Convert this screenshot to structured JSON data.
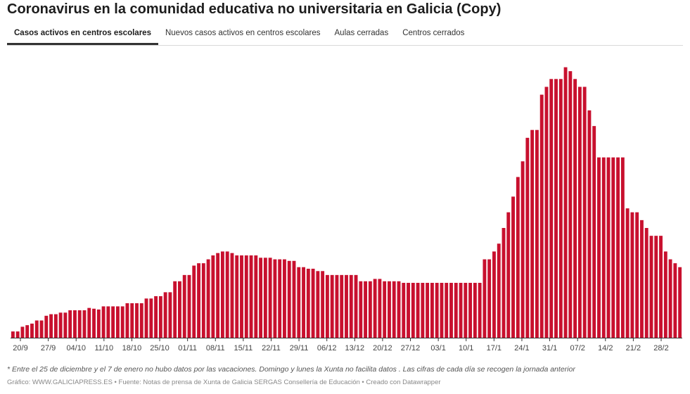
{
  "title": "Coronavirus en la comunidad educativa no universitaria en Galicia (Copy)",
  "tabs": [
    {
      "label": "Casos activos en centros escolares",
      "active": true
    },
    {
      "label": "Nuevos casos activos en centros escolares",
      "active": false
    },
    {
      "label": "Aulas cerradas",
      "active": false
    },
    {
      "label": "Centros cerrados",
      "active": false
    }
  ],
  "footnote": "* Entre el 25 de diciembre y el 7 de enero no hubo datos por las vacaciones. Domingo y lunes la Xunta no facilita datos . Las cifras de cada día se recogen la jornada anterior",
  "credits": "Gráfico: WWW.GALICIAPRESS.ES • Fuente: Notas de prensa de Xunta de Galicia SERGAS Consellería de Educación • Creado con Datawrapper",
  "colors": {
    "bar": "#c8102e"
  },
  "chart_data": {
    "type": "bar",
    "title": "",
    "xlabel": "",
    "ylabel": "",
    "grid": false,
    "x_tick_labels": [
      "20/9",
      "27/9",
      "04/10",
      "11/10",
      "18/10",
      "25/10",
      "01/11",
      "08/11",
      "15/11",
      "22/11",
      "29/11",
      "06/12",
      "13/12",
      "20/12",
      "27/12",
      "03/1",
      "10/1",
      "17/1",
      "24/1",
      "31/1",
      "07/2",
      "14/2",
      "21/2",
      "28/2"
    ],
    "values": [
      8,
      8,
      14,
      16,
      18,
      22,
      22,
      28,
      30,
      30,
      32,
      32,
      35,
      35,
      35,
      35,
      38,
      37,
      36,
      40,
      40,
      40,
      40,
      40,
      44,
      44,
      44,
      44,
      50,
      50,
      53,
      53,
      58,
      58,
      72,
      72,
      80,
      80,
      92,
      95,
      95,
      100,
      105,
      108,
      110,
      110,
      108,
      105,
      105,
      105,
      105,
      105,
      102,
      102,
      102,
      100,
      100,
      100,
      98,
      98,
      90,
      90,
      88,
      88,
      85,
      85,
      80,
      80,
      80,
      80,
      80,
      80,
      80,
      72,
      72,
      72,
      75,
      75,
      72,
      72,
      72,
      72,
      70,
      70,
      70,
      70,
      70,
      70,
      70,
      70,
      70,
      70,
      70,
      70,
      70,
      70,
      70,
      70,
      70,
      100,
      100,
      110,
      120,
      140,
      160,
      180,
      205,
      225,
      255,
      265,
      265,
      310,
      320,
      330,
      330,
      330,
      345,
      340,
      330,
      320,
      320,
      290,
      270,
      230,
      230,
      230,
      230,
      230,
      230,
      165,
      160,
      160,
      150,
      140,
      130,
      130,
      130,
      110,
      100,
      95,
      90
    ],
    "ylim": [
      0,
      350
    ]
  }
}
